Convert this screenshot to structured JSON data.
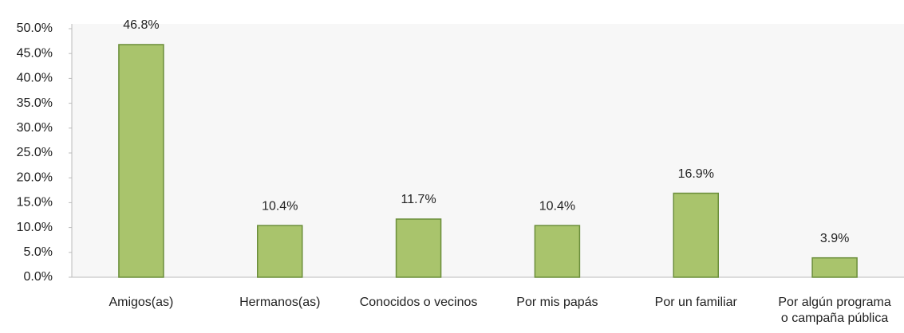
{
  "chart_data": {
    "type": "bar",
    "categories": [
      "Amigos(as)",
      "Hermanos(as)",
      "Conocidos o vecinos",
      "Por mis papás",
      "Por un familiar",
      "Por algún programa\no campaña pública"
    ],
    "values": [
      46.8,
      10.4,
      11.7,
      10.4,
      16.9,
      3.9
    ],
    "value_labels": [
      "46.8%",
      "10.4%",
      "11.7%",
      "10.4%",
      "16.9%",
      "3.9%"
    ],
    "color": "#a9c46c",
    "ylim": [
      0,
      50
    ],
    "yticks": [
      {
        "value": 0,
        "label": "0.0%"
      },
      {
        "value": 5,
        "label": "5.0%"
      },
      {
        "value": 10,
        "label": "10.0%"
      },
      {
        "value": 15,
        "label": "15.0%"
      },
      {
        "value": 20,
        "label": "20.0%"
      },
      {
        "value": 25,
        "label": "25.0%"
      },
      {
        "value": 30,
        "label": "30.0%"
      },
      {
        "value": 35,
        "label": "35.0%"
      },
      {
        "value": 40,
        "label": "40.0%"
      },
      {
        "value": 45,
        "label": "45.0%"
      },
      {
        "value": 50,
        "label": "50.0%"
      }
    ],
    "grid": false
  }
}
